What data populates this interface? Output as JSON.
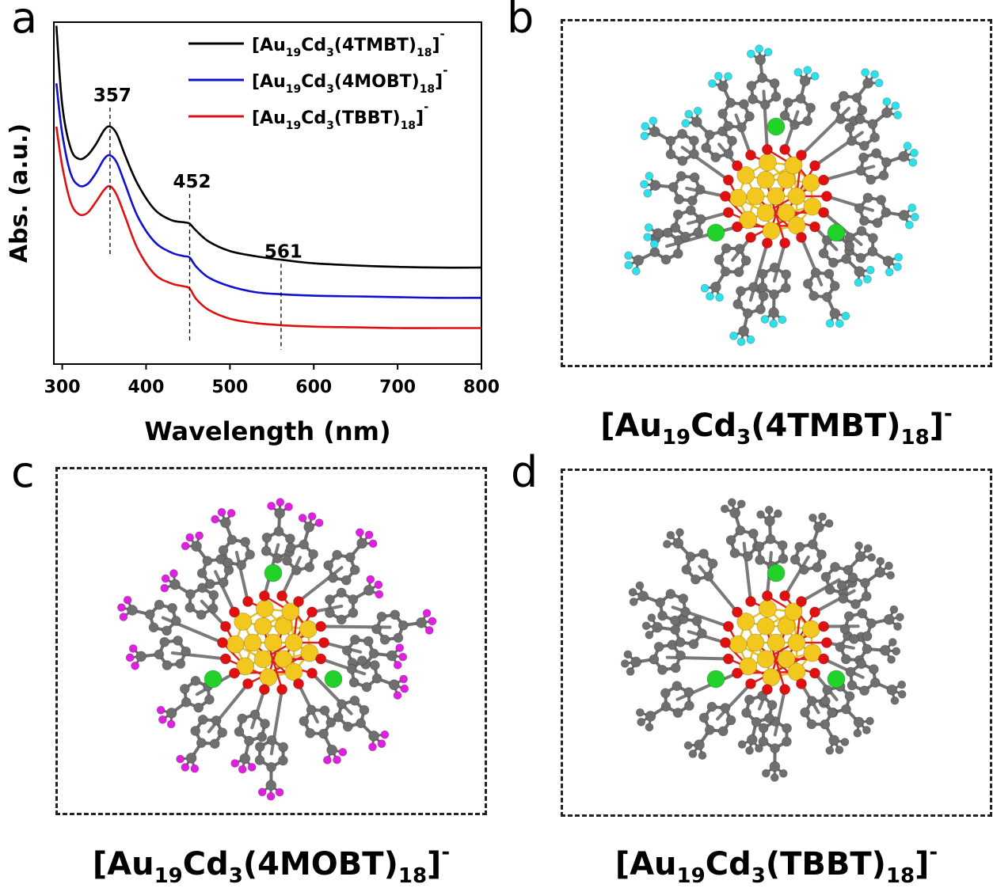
{
  "panels": {
    "a": "a",
    "b": "b",
    "c": "c",
    "d": "d"
  },
  "chart_data": {
    "type": "line",
    "title": "",
    "xlabel": "Wavelength (nm)",
    "ylabel": "Abs. (a.u.)",
    "xlim": [
      290,
      800
    ],
    "xticks": [
      300,
      400,
      500,
      600,
      700,
      800
    ],
    "yticks_shown": false,
    "grid": false,
    "legend_position": "top-right",
    "x": [
      293,
      300,
      310,
      320,
      330,
      340,
      350,
      357,
      365,
      375,
      390,
      410,
      430,
      445,
      452,
      460,
      475,
      500,
      530,
      561,
      600,
      650,
      700,
      750,
      800
    ],
    "series": [
      {
        "name_parts": {
          "pre": "[Au",
          "s1": "19",
          "mid": "Cd",
          "s2": "3",
          "lig": "(4TMBT)",
          "s3": "18",
          "post": "]",
          "sup": "-"
        },
        "color": "#000000",
        "values": [
          5.0,
          3.9,
          3.3,
          3.15,
          3.2,
          3.35,
          3.55,
          3.6,
          3.5,
          3.2,
          2.8,
          2.45,
          2.3,
          2.27,
          2.25,
          2.15,
          2.0,
          1.87,
          1.8,
          1.75,
          1.7,
          1.67,
          1.65,
          1.64,
          1.64
        ]
      },
      {
        "name_parts": {
          "pre": "[Au",
          "s1": "19",
          "mid": "Cd",
          "s2": "3",
          "lig": "(4MOBT)",
          "s3": "18",
          "post": "]",
          "sup": "-"
        },
        "color": "#1010d0",
        "values": [
          4.2,
          3.5,
          2.95,
          2.78,
          2.8,
          2.95,
          3.15,
          3.2,
          3.1,
          2.8,
          2.35,
          2.0,
          1.85,
          1.8,
          1.78,
          1.65,
          1.5,
          1.38,
          1.3,
          1.27,
          1.25,
          1.24,
          1.23,
          1.22,
          1.22
        ]
      },
      {
        "name_parts": {
          "pre": "[Au",
          "s1": "19",
          "mid": "Cd",
          "s2": "3",
          "lig": "(TBBT)",
          "s3": "18",
          "post": "]",
          "sup": "-"
        },
        "color": "#e01010",
        "values": [
          3.6,
          3.05,
          2.55,
          2.38,
          2.4,
          2.55,
          2.72,
          2.77,
          2.65,
          2.35,
          1.9,
          1.55,
          1.42,
          1.38,
          1.35,
          1.2,
          1.05,
          0.93,
          0.87,
          0.84,
          0.82,
          0.81,
          0.8,
          0.8,
          0.8
        ]
      }
    ],
    "annotations": [
      {
        "text": "357",
        "x": 357
      },
      {
        "text": "452",
        "x": 452
      },
      {
        "text": "561",
        "x": 561
      }
    ]
  },
  "colors": {
    "au": "#f2c81e",
    "cd": "#22d22a",
    "s": "#e01010",
    "c": "#6f6f6f",
    "f": "#2ee0ea",
    "o": "#e020e0"
  },
  "structures": {
    "b": {
      "name_parts": {
        "pre": "[Au",
        "s1": "19",
        "mid": "Cd",
        "s2": "3",
        "lig": "(4TMBT)",
        "s3": "18",
        "post": "]",
        "sup": "-"
      },
      "tip": "f"
    },
    "c": {
      "name_parts": {
        "pre": "[Au",
        "s1": "19",
        "mid": "Cd",
        "s2": "3",
        "lig": "(4MOBT)",
        "s3": "18",
        "post": "]",
        "sup": "-"
      },
      "tip": "o"
    },
    "d": {
      "name_parts": {
        "pre": "[Au",
        "s1": "19",
        "mid": "Cd",
        "s2": "3",
        "lig": "(TBBT)",
        "s3": "18",
        "post": "]",
        "sup": "-"
      },
      "tip": "c"
    }
  }
}
